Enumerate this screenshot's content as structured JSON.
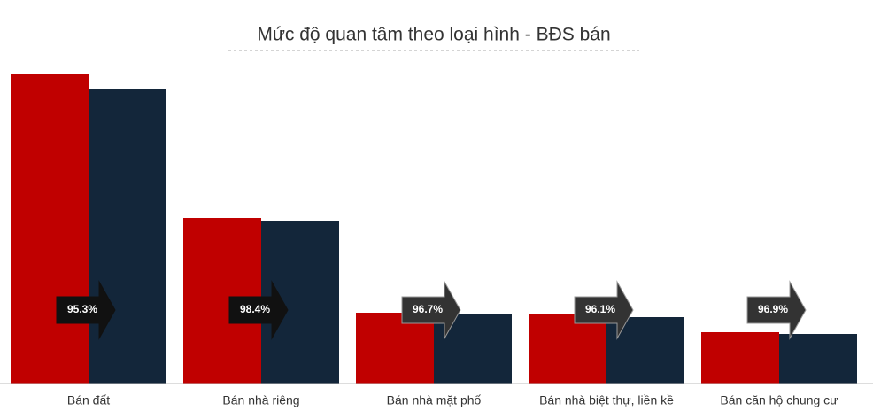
{
  "chart_data": {
    "type": "bar",
    "title": "Mức độ quan tâm theo loại hình - BĐS bán",
    "categories": [
      "Bán đất",
      "Bán nhà riêng",
      "Bán nhà mặt phố",
      "Bán nhà biệt thự, liền kề",
      "Bán căn hộ chung cư"
    ],
    "series": [
      {
        "color": "#c00000",
        "values": [
          349,
          187,
          80,
          78,
          58
        ]
      },
      {
        "color": "#13263a",
        "values": [
          333,
          184,
          78,
          75,
          56
        ]
      }
    ],
    "annotations": [
      "95.3%",
      "98.4%",
      "96.7%",
      "96.1%",
      "96.9%"
    ],
    "ylim": [
      0,
      360
    ]
  }
}
